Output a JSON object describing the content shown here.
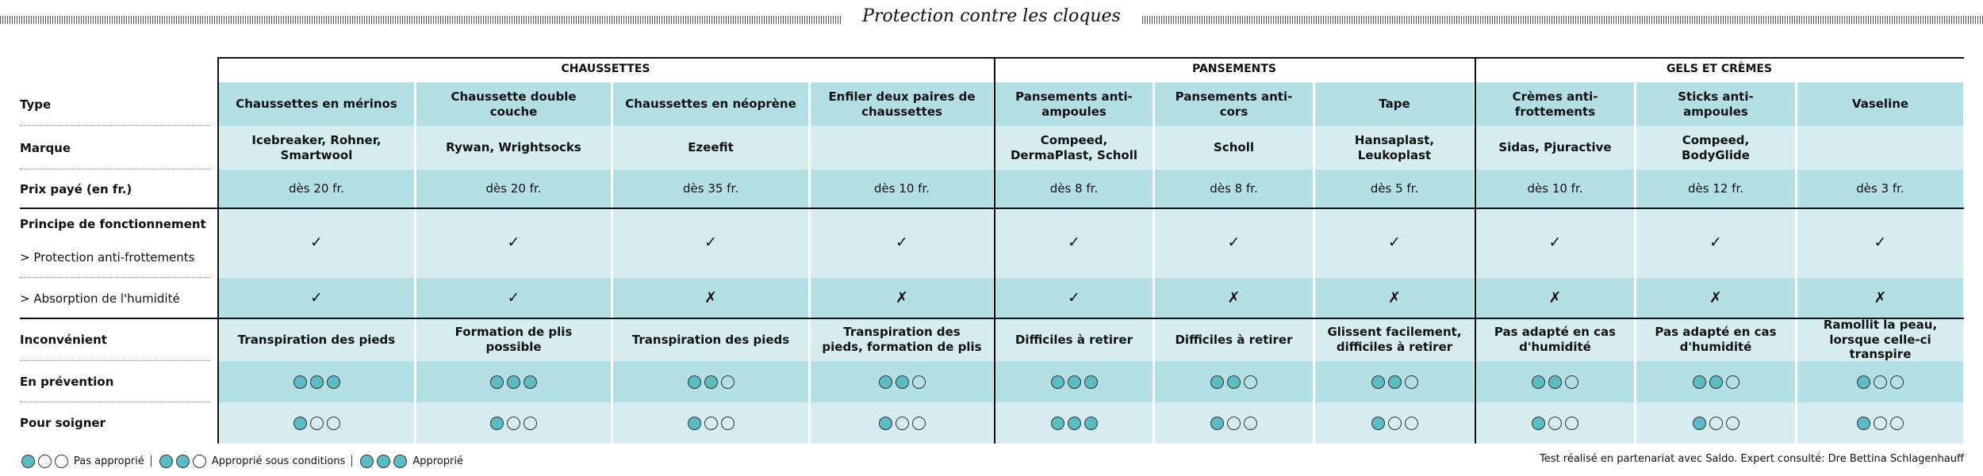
{
  "title": "Protection contre les cloques",
  "row_labels": {
    "type": "Type",
    "brand": "Marque",
    "price": "Prix payé (en fr.)",
    "principle": "Principe de fonctionnement",
    "protection": "> Protection anti-frottements",
    "absorption": "> Absorption de l'humidité",
    "drawback": "Inconvénient",
    "prevention": "En prévention",
    "care": "Pour soigner"
  },
  "groups": [
    {
      "name": "CHAUSSETTES",
      "columns": [
        {
          "type": "Chaussettes en mérinos",
          "brand": "Icebreaker, Rohner, Smartwool",
          "price": "dès 20 fr.",
          "protection": "✓",
          "absorption": "✓",
          "drawback": "Transpiration des pieds",
          "prevention": 3,
          "care": 1
        },
        {
          "type": "Chaussette double couche",
          "brand": "Rywan, Wrightsocks",
          "price": "dès 20 fr.",
          "protection": "✓",
          "absorption": "✓",
          "drawback": "Formation de plis possible",
          "prevention": 3,
          "care": 1
        },
        {
          "type": "Chaussettes en néoprène",
          "brand": "Ezeefit",
          "price": "dès 35 fr.",
          "protection": "✓",
          "absorption": "✗",
          "drawback": "Transpiration des pieds",
          "prevention": 2,
          "care": 1
        },
        {
          "type": "Enfiler deux paires de chaussettes",
          "brand": null,
          "price": "dès 10 fr.",
          "protection": "✓",
          "absorption": "✗",
          "drawback": "Transpiration des pieds, formation de plis",
          "prevention": 2,
          "care": 1
        }
      ]
    },
    {
      "name": "PANSEMENTS",
      "columns": [
        {
          "type": "Pansements anti-ampoules",
          "brand": "Compeed, DermaPlast, Scholl",
          "price": "dès 8 fr.",
          "protection": "✓",
          "absorption": "✓",
          "drawback": "Difficiles à retirer",
          "prevention": 3,
          "care": 3
        },
        {
          "type": "Pansements anti-cors",
          "brand": "Scholl",
          "price": "dès 8 fr.",
          "protection": "✓",
          "absorption": "✗",
          "drawback": "Difficiles à retirer",
          "prevention": 2,
          "care": 1
        },
        {
          "type": "Tape",
          "brand": "Hansaplast, Leukoplast",
          "price": "dès 5 fr.",
          "protection": "✓",
          "absorption": "✗",
          "drawback": "Glissent facilement, difficiles à retirer",
          "prevention": 2,
          "care": 1
        }
      ]
    },
    {
      "name": "GELS ET CRÈMES",
      "columns": [
        {
          "type": "Crèmes anti-frottements",
          "brand": "Sidas, Pjuractive",
          "price": "dès 10 fr.",
          "protection": "✓",
          "absorption": "✗",
          "drawback": "Pas adapté en cas d'humidité",
          "prevention": 2,
          "care": 1
        },
        {
          "type": "Sticks anti-ampoules",
          "brand": "Compeed, BodyGlide",
          "price": "dès 12 fr.",
          "protection": "✓",
          "absorption": "✗",
          "drawback": "Pas adapté en cas d'humidité",
          "prevention": 2,
          "care": 1
        },
        {
          "type": "Vaseline",
          "brand": null,
          "price": "dès 3 fr.",
          "protection": "✓",
          "absorption": "✗",
          "drawback": "Ramollit la peau, lorsque celle-ci transpire",
          "prevention": 1,
          "care": 1
        }
      ]
    }
  ],
  "legend": [
    {
      "level": 1,
      "label": "Pas approprié"
    },
    {
      "level": 2,
      "label": "Approprié sous conditions"
    },
    {
      "level": 3,
      "label": "Approprié"
    }
  ],
  "footer": "Test réalisé en partenariat avec Saldo. Expert consulté: Dre Bettina Schlagenhauff"
}
